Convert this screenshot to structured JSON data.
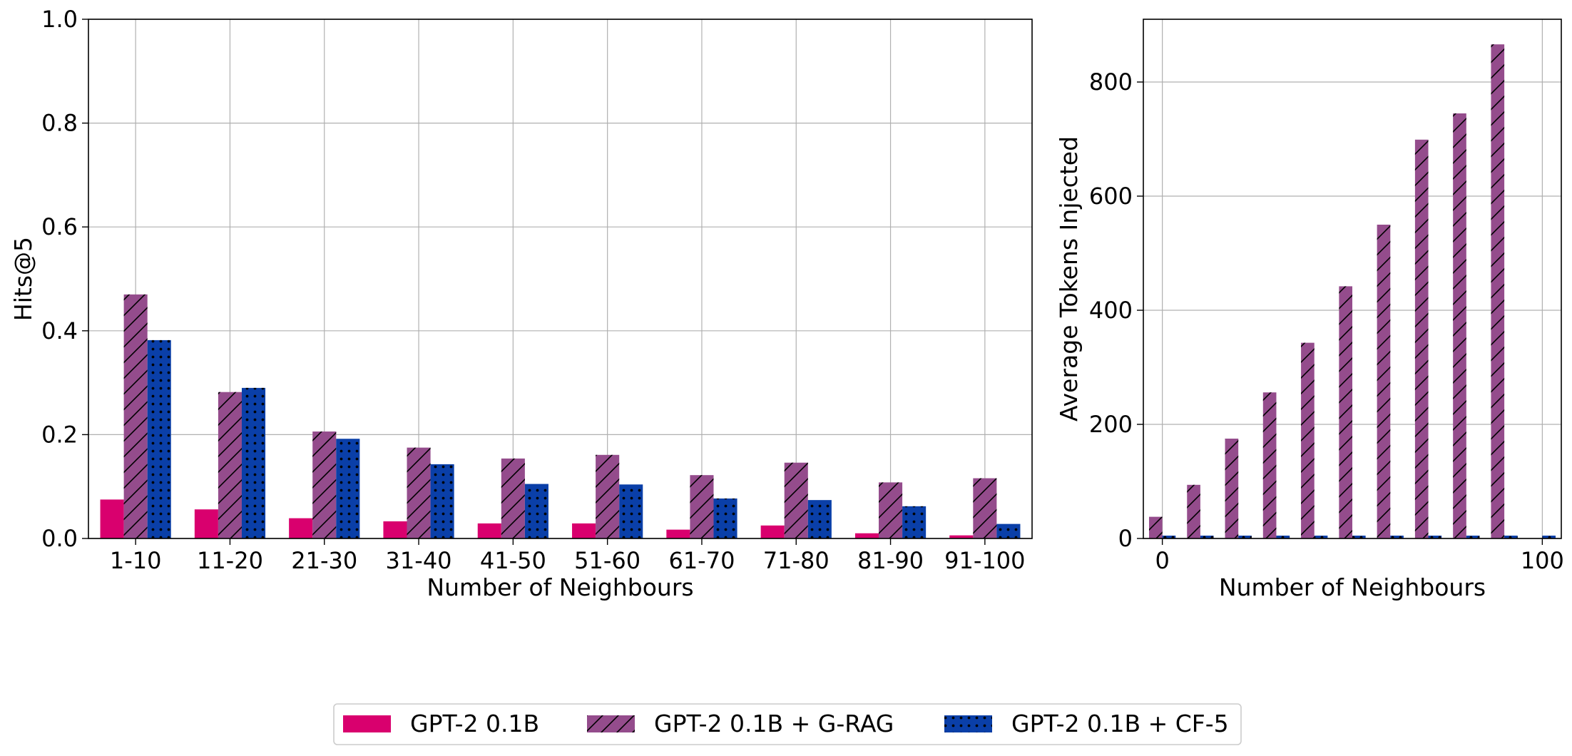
{
  "chart_data": [
    {
      "type": "bar",
      "xlabel": "Number of Neighbours",
      "ylabel": "Hits@5",
      "ylim": [
        0,
        1.0
      ],
      "yticks": [
        "0.0",
        "0.2",
        "0.4",
        "0.6",
        "0.8",
        "1.0"
      ],
      "grid": true,
      "categories": [
        "1-10",
        "11-20",
        "21-30",
        "31-40",
        "41-50",
        "51-60",
        "61-70",
        "71-80",
        "81-90",
        "91-100"
      ],
      "series": [
        {
          "name": "GPT-2 0.1B",
          "color": "#d9006e",
          "pattern": "solid",
          "values": [
            0.075,
            0.056,
            0.039,
            0.033,
            0.029,
            0.029,
            0.017,
            0.025,
            0.01,
            0.006
          ]
        },
        {
          "name": "GPT-2 0.1B + G-RAG",
          "color": "#944c8c",
          "pattern": "hatch",
          "values": [
            0.47,
            0.282,
            0.206,
            0.175,
            0.154,
            0.161,
            0.122,
            0.146,
            0.108,
            0.116
          ]
        },
        {
          "name": "GPT-2 0.1B + CF-5",
          "color": "#0a3fa8",
          "pattern": "dots",
          "values": [
            0.382,
            0.29,
            0.192,
            0.143,
            0.105,
            0.104,
            0.077,
            0.074,
            0.062,
            0.028
          ]
        }
      ]
    },
    {
      "type": "bar",
      "xlabel": "Number of Neighbours",
      "ylabel": "Average Tokens Injected",
      "xlim": [
        -5,
        105
      ],
      "ylim": [
        0,
        910
      ],
      "xticks": [
        0,
        100
      ],
      "yticks": [
        0,
        200,
        400,
        600,
        800
      ],
      "grid": true,
      "x": [
        0,
        10,
        20,
        30,
        40,
        50,
        60,
        70,
        80,
        90,
        100
      ],
      "series": [
        {
          "name": "GPT-2 0.1B + G-RAG",
          "color": "#944c8c",
          "pattern": "hatch",
          "values": [
            38,
            94,
            175,
            256,
            343,
            442,
            550,
            699,
            745,
            866,
            null
          ]
        },
        {
          "name": "GPT-2 0.1B + CF-5",
          "color": "#0a3fa8",
          "pattern": "dots",
          "values": [
            5,
            5,
            5,
            5,
            5,
            5,
            5,
            5,
            5,
            5,
            5
          ]
        }
      ]
    }
  ],
  "legend": {
    "placement": "bottom-center",
    "entries": [
      {
        "label": "GPT-2 0.1B",
        "color": "#d9006e",
        "pattern": "solid"
      },
      {
        "label": "GPT-2 0.1B + G-RAG",
        "color": "#944c8c",
        "pattern": "hatch"
      },
      {
        "label": "GPT-2 0.1B + CF-5",
        "color": "#0a3fa8",
        "pattern": "dots"
      }
    ]
  }
}
